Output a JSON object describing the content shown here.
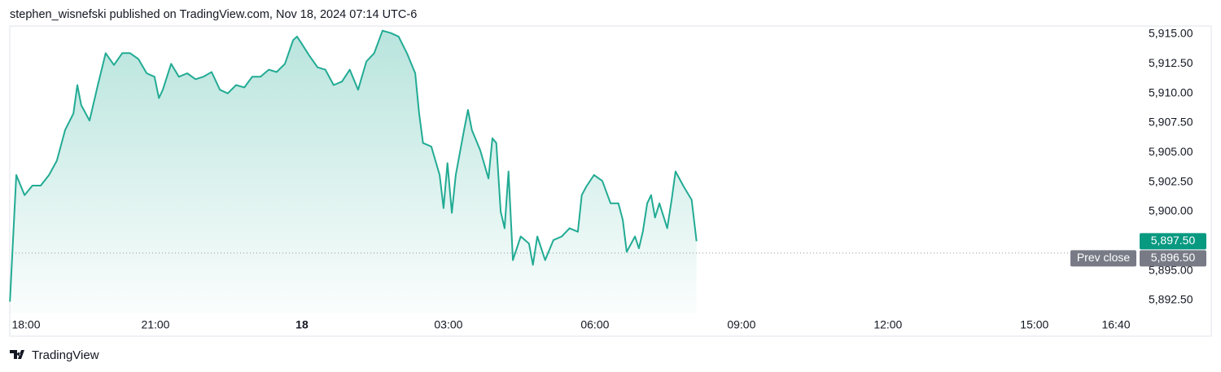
{
  "header": "stephen_wisnefski published on TradingView.com, Nov 18, 2024 07:14 UTC-6",
  "footer": "TradingView",
  "chart_data": {
    "type": "area",
    "series": [
      {
        "color": "#22ab94",
        "x": [
          0.02,
          0.15,
          0.32,
          0.48,
          0.65,
          0.82,
          0.98,
          1.15,
          1.32,
          1.4,
          1.48,
          1.65,
          1.82,
          1.98,
          2.15,
          2.32,
          2.48,
          2.65,
          2.82,
          2.98,
          3.07,
          3.15,
          3.32,
          3.48,
          3.65,
          3.82,
          3.98,
          4.15,
          4.32,
          4.48,
          4.65,
          4.82,
          4.98,
          5.15,
          5.32,
          5.48,
          5.65,
          5.82,
          5.9,
          5.98,
          6.15,
          6.32,
          6.48,
          6.65,
          6.82,
          6.98,
          7.15,
          7.32,
          7.48,
          7.65,
          7.82,
          7.98,
          8.15,
          8.32,
          8.4,
          8.48,
          8.65,
          8.82,
          8.9,
          8.98,
          9.07,
          9.15,
          9.32,
          9.4,
          9.48,
          9.65,
          9.82,
          9.9,
          9.98,
          10.07,
          10.15,
          10.23,
          10.32,
          10.48,
          10.65,
          10.73,
          10.82,
          10.98,
          11.15,
          11.32,
          11.48,
          11.65,
          11.73,
          11.82,
          11.98,
          12.15,
          12.32,
          12.48,
          12.57,
          12.65,
          12.82,
          12.9,
          12.98,
          13.07,
          13.15,
          13.23,
          13.32,
          13.48,
          13.57,
          13.65,
          13.82,
          13.98,
          14.08
        ],
        "values": [
          5892.4,
          5903.1,
          5901.4,
          5902.2,
          5902.2,
          5903.1,
          5904.3,
          5906.9,
          5908.3,
          5910.7,
          5909.0,
          5907.7,
          5910.7,
          5913.4,
          5912.4,
          5913.4,
          5913.4,
          5912.9,
          5911.7,
          5911.4,
          5909.6,
          5910.3,
          5912.5,
          5911.4,
          5911.7,
          5911.2,
          5911.4,
          5911.8,
          5910.3,
          5910.0,
          5910.7,
          5910.5,
          5911.4,
          5911.4,
          5912.0,
          5911.8,
          5912.5,
          5914.5,
          5914.8,
          5914.3,
          5913.2,
          5912.2,
          5912.0,
          5910.7,
          5911.0,
          5912.0,
          5910.3,
          5912.7,
          5913.4,
          5915.3,
          5915.1,
          5914.8,
          5913.4,
          5911.7,
          5908.3,
          5905.8,
          5905.5,
          5903.1,
          5900.3,
          5904.1,
          5899.9,
          5903.1,
          5906.9,
          5908.6,
          5906.9,
          5905.2,
          5902.8,
          5906.2,
          5905.8,
          5900.0,
          5898.6,
          5903.4,
          5895.9,
          5897.9,
          5897.3,
          5895.5,
          5897.9,
          5895.9,
          5897.6,
          5897.9,
          5898.6,
          5898.3,
          5901.4,
          5902.1,
          5903.1,
          5902.6,
          5900.7,
          5900.7,
          5899.3,
          5896.6,
          5897.9,
          5896.9,
          5898.3,
          5900.7,
          5901.4,
          5899.5,
          5900.7,
          5898.6,
          5901.0,
          5903.4,
          5902.1,
          5901.0,
          5897.5
        ]
      }
    ],
    "xlim": [
      0,
      23.12
    ],
    "xticks": [
      {
        "value": 0,
        "label": "18:00"
      },
      {
        "value": 3,
        "label": "21:00"
      },
      {
        "value": 6,
        "label": "18"
      },
      {
        "value": 9,
        "label": "03:00"
      },
      {
        "value": 12,
        "label": "06:00"
      },
      {
        "value": 15,
        "label": "09:00"
      },
      {
        "value": 18,
        "label": "12:00"
      },
      {
        "value": 21,
        "label": "15:00"
      },
      {
        "value": 22.67,
        "label": "16:40"
      }
    ],
    "ylim": [
      5891.4,
      5915.69
    ],
    "yticks": [
      {
        "value": 5915,
        "label": "5,915.00"
      },
      {
        "value": 5912.5,
        "label": "5,912.50"
      },
      {
        "value": 5910,
        "label": "5,910.00"
      },
      {
        "value": 5907.5,
        "label": "5,907.50"
      },
      {
        "value": 5905,
        "label": "5,905.00"
      },
      {
        "value": 5902.5,
        "label": "5,902.50"
      },
      {
        "value": 5900,
        "label": "5,900.00"
      },
      {
        "value": 5897.5,
        "label": "5,897.50"
      },
      {
        "value": 5895,
        "label": "5,895.00"
      },
      {
        "value": 5892.5,
        "label": "5,892.50"
      }
    ],
    "grid": false,
    "last_price": {
      "value": 5897.5,
      "label": "5,897.50",
      "color": "#089981"
    },
    "prev_close": {
      "name": "Prev close",
      "value": 5896.5,
      "label": "5,896.50",
      "color": "#787b86"
    }
  }
}
